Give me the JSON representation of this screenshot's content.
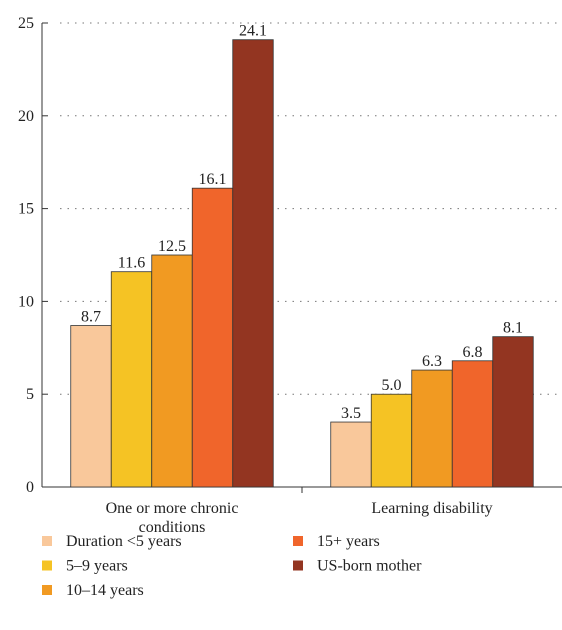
{
  "chart_data": {
    "type": "bar",
    "categories": [
      "One or more chronic conditions",
      "Learning disability"
    ],
    "series": [
      {
        "name": "Duration <5 years",
        "color": "#f9c89b",
        "values": [
          8.7,
          3.5
        ]
      },
      {
        "name": "5–9 years",
        "color": "#f5c324",
        "values": [
          11.6,
          5
        ],
        "value_labels": [
          "11.6",
          "5.0"
        ]
      },
      {
        "name": "10–14 years",
        "color": "#f19a22",
        "values": [
          12.5,
          6.3
        ]
      },
      {
        "name": "15+ years",
        "color": "#f0652b",
        "values": [
          16.1,
          6.8
        ]
      },
      {
        "name": "US-born mother",
        "color": "#933521",
        "values": [
          24.1,
          8.1
        ]
      }
    ],
    "ylim": [
      0,
      25
    ],
    "yticks": [
      0,
      5,
      10,
      15,
      20,
      25
    ],
    "grid": true
  }
}
